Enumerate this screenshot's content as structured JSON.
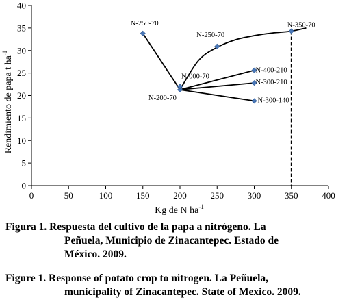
{
  "chart_data": {
    "type": "scatter",
    "xlabel": "Kg de N ha",
    "xlabel_sup": "-1",
    "ylabel": "Rendimiento de papa t ha",
    "ylabel_sup": "-1",
    "xlim": [
      0,
      400
    ],
    "ylim": [
      0,
      40
    ],
    "x_ticks": [
      0,
      50,
      100,
      150,
      200,
      250,
      300,
      350,
      400
    ],
    "y_ticks": [
      0,
      5,
      10,
      15,
      20,
      25,
      30,
      35,
      40
    ],
    "grid": false,
    "points": [
      {
        "label": "N-250-70",
        "x": 150,
        "y": 33.8
      },
      {
        "label": "N-200-70",
        "x": 200,
        "y": 21.3
      },
      {
        "label": "N-000-70",
        "x": 200,
        "y": 22.0
      },
      {
        "label": "N-250-70",
        "x": 250,
        "y": 30.9
      },
      {
        "label": "N-400-210",
        "x": 300,
        "y": 25.6
      },
      {
        "label": "N-300-210",
        "x": 300,
        "y": 22.8
      },
      {
        "label": "N-300-140",
        "x": 300,
        "y": 18.8
      },
      {
        "label": "N-350-70",
        "x": 350,
        "y": 34.3
      }
    ],
    "segments": [
      {
        "from": [
          150,
          33.8
        ],
        "to": [
          200,
          21.3
        ]
      },
      {
        "from": [
          200,
          21.3
        ],
        "to": [
          300,
          25.6
        ]
      },
      {
        "from": [
          200,
          21.3
        ],
        "to": [
          300,
          22.8
        ]
      },
      {
        "from": [
          200,
          21.3
        ],
        "to": [
          300,
          18.8
        ]
      }
    ],
    "curve": {
      "x": [
        200,
        225,
        250,
        275,
        300,
        325,
        350,
        370
      ],
      "y": [
        21.3,
        27.8,
        30.7,
        32.4,
        33.3,
        33.9,
        34.3,
        35.0
      ]
    },
    "vertical_marker": {
      "x": 350,
      "y_from": 0,
      "y_to": 34.3,
      "style": "dashed"
    },
    "marker_color": "#4a78b8",
    "line_color": "#000000"
  },
  "captions": {
    "spanish": [
      "Figura 1. Respuesta del cultivo de la papa a nitrógeno. La",
      "Peñuela, Municipio de Zinacantepec. Estado de",
      "México. 2009."
    ],
    "english": [
      "Figure 1. Response of potato crop to nitrogen. La Peñuela,",
      "municipality of Zinacantepec. State of Mexico. 2009."
    ]
  }
}
